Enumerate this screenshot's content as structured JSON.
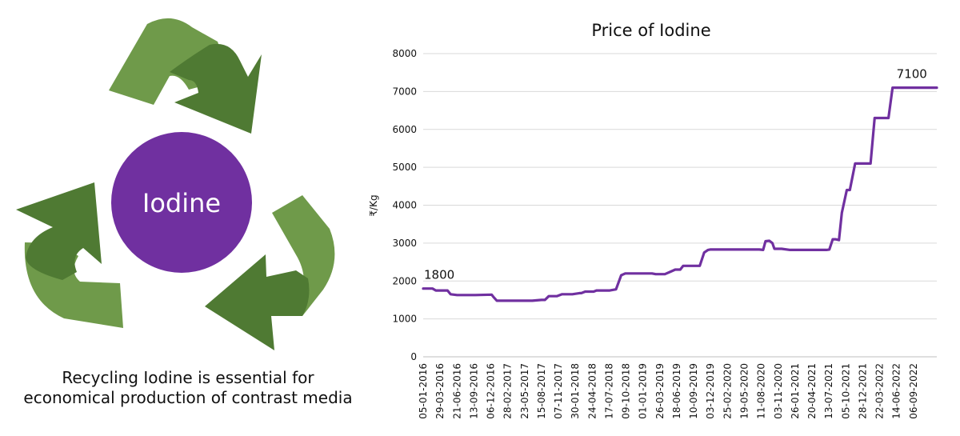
{
  "infographic": {
    "center_label": "Iodine",
    "caption_line1": "Recycling Iodine is essential for",
    "caption_line2": "economical production of contrast media",
    "colors": {
      "arrow_light": "#6f9a4a",
      "arrow_dark": "#4f7a33",
      "circle": "#7030a0"
    },
    "icon": "recycle-arrows-icon"
  },
  "chart_data": {
    "type": "line",
    "title": "Price of Iodine",
    "xlabel": "",
    "ylabel": "₹/Kg",
    "ylim": [
      0,
      8000
    ],
    "yticks": [
      0,
      1000,
      2000,
      3000,
      4000,
      5000,
      6000,
      7000,
      8000
    ],
    "grid": "horizontal",
    "xlim": [
      "05-01-2016",
      "31-12-2022"
    ],
    "xticks": [
      "05-01-2016",
      "29-03-2016",
      "21-06-2016",
      "13-09-2016",
      "06-12-2016",
      "28-02-2017",
      "23-05-2017",
      "15-08-2017",
      "07-11-2017",
      "30-01-2018",
      "24-04-2018",
      "17-07-2018",
      "09-10-2018",
      "01-01-2019",
      "26-03-2019",
      "18-06-2019",
      "10-09-2019",
      "03-12-2019",
      "25-02-2020",
      "19-05-2020",
      "11-08-2020",
      "03-11-2020",
      "26-01-2021",
      "20-04-2021",
      "13-07-2021",
      "05-10-2021",
      "28-12-2021",
      "22-03-2022",
      "14-06-2022",
      "06-09-2022"
    ],
    "series": [
      {
        "color": "#7030a0",
        "points": [
          [
            "05-01-2016",
            1800
          ],
          [
            "20-02-2016",
            1800
          ],
          [
            "08-03-2016",
            1750
          ],
          [
            "05-05-2016",
            1750
          ],
          [
            "20-05-2016",
            1650
          ],
          [
            "21-06-2016",
            1630
          ],
          [
            "20-09-2016",
            1630
          ],
          [
            "10-12-2016",
            1640
          ],
          [
            "22-12-2016",
            1560
          ],
          [
            "05-01-2017",
            1480
          ],
          [
            "15-02-2017",
            1480
          ],
          [
            "30-06-2017",
            1480
          ],
          [
            "15-08-2017",
            1500
          ],
          [
            "01-09-2017",
            1500
          ],
          [
            "20-09-2017",
            1600
          ],
          [
            "30-10-2017",
            1600
          ],
          [
            "25-11-2017",
            1650
          ],
          [
            "15-01-2018",
            1650
          ],
          [
            "20-02-2018",
            1680
          ],
          [
            "01-03-2018",
            1680
          ],
          [
            "20-03-2018",
            1720
          ],
          [
            "01-05-2018",
            1720
          ],
          [
            "15-05-2018",
            1750
          ],
          [
            "20-07-2018",
            1750
          ],
          [
            "20-08-2018",
            1780
          ],
          [
            "15-09-2018",
            2150
          ],
          [
            "05-10-2018",
            2200
          ],
          [
            "15-11-2018",
            2200
          ],
          [
            "10-12-2018",
            2200
          ],
          [
            "15-01-2019",
            2200
          ],
          [
            "15-02-2019",
            2200
          ],
          [
            "05-03-2019",
            2180
          ],
          [
            "20-04-2019",
            2180
          ],
          [
            "20-05-2019",
            2250
          ],
          [
            "10-06-2019",
            2300
          ],
          [
            "05-07-2019",
            2300
          ],
          [
            "20-07-2019",
            2400
          ],
          [
            "20-09-2019",
            2400
          ],
          [
            "10-10-2019",
            2400
          ],
          [
            "01-11-2019",
            2750
          ],
          [
            "20-11-2019",
            2820
          ],
          [
            "01-12-2019",
            2830
          ],
          [
            "01-08-2020",
            2830
          ],
          [
            "20-08-2020",
            2820
          ],
          [
            "01-09-2020",
            3050
          ],
          [
            "20-09-2020",
            3060
          ],
          [
            "05-10-2020",
            3000
          ],
          [
            "15-10-2020",
            2850
          ],
          [
            "20-11-2020",
            2850
          ],
          [
            "01-01-2021",
            2820
          ],
          [
            "20-03-2021",
            2820
          ],
          [
            "15-06-2021",
            2820
          ],
          [
            "01-07-2021",
            2820
          ],
          [
            "15-07-2021",
            2830
          ],
          [
            "01-08-2021",
            3100
          ],
          [
            "15-08-2021",
            3100
          ],
          [
            "01-09-2021",
            3080
          ],
          [
            "15-09-2021",
            3800
          ],
          [
            "10-10-2021",
            4400
          ],
          [
            "25-10-2021",
            4400
          ],
          [
            "20-11-2021",
            5100
          ],
          [
            "01-12-2021",
            5100
          ],
          [
            "20-01-2022",
            5100
          ],
          [
            "05-02-2022",
            5100
          ],
          [
            "25-02-2022",
            6300
          ],
          [
            "10-03-2022",
            6300
          ],
          [
            "20-04-2022",
            6300
          ],
          [
            "05-05-2022",
            6300
          ],
          [
            "25-05-2022",
            7100
          ],
          [
            "10-06-2022",
            7100
          ],
          [
            "15-07-2022",
            7100
          ],
          [
            "31-12-2022",
            7100
          ]
        ]
      }
    ],
    "annotations": [
      {
        "label": "1800",
        "x": "05-01-2016",
        "y": 1800
      },
      {
        "label": "7100",
        "x": "10-06-2022",
        "y": 7100
      }
    ]
  }
}
